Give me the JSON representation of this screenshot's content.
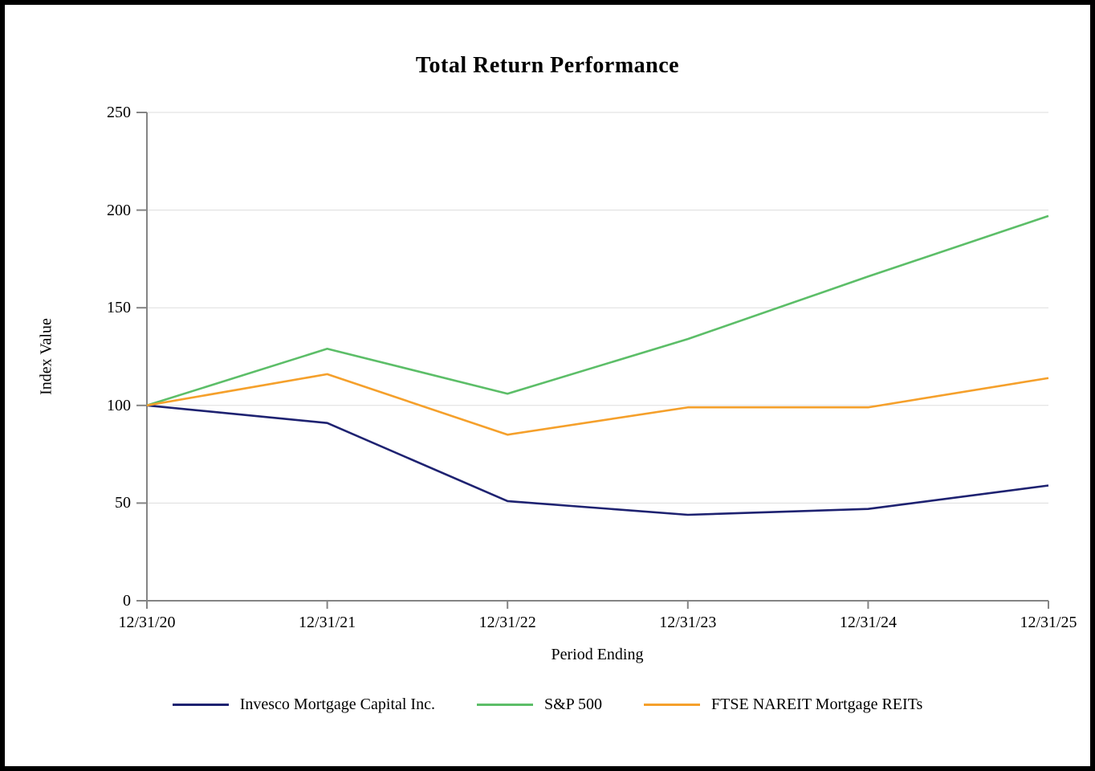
{
  "chart_data": {
    "type": "line",
    "title": "Total Return Performance",
    "xlabel": "Period Ending",
    "ylabel": "Index Value",
    "categories": [
      "12/31/20",
      "12/31/21",
      "12/31/22",
      "12/31/23",
      "12/31/24",
      "12/31/25"
    ],
    "series": [
      {
        "name": "Invesco Mortgage Capital Inc.",
        "color": "#1E2271",
        "values": [
          100,
          91,
          51,
          44,
          47,
          59
        ]
      },
      {
        "name": "S&P 500",
        "color": "#5CBE68",
        "values": [
          100,
          129,
          106,
          134,
          166,
          197
        ]
      },
      {
        "name": "FTSE NAREIT Mortgage REITs",
        "color": "#F5A02B",
        "values": [
          100,
          116,
          85,
          99,
          99,
          114
        ]
      }
    ],
    "ylim": [
      0,
      250
    ],
    "y_ticks": [
      0,
      50,
      100,
      150,
      200,
      250
    ],
    "grid": "horizontal",
    "legend_position": "bottom"
  },
  "colors": {
    "background": "#FFFFFF",
    "border": "#000000",
    "gridline": "#DDDDDD",
    "axis": "#848484",
    "text": "#000000"
  }
}
